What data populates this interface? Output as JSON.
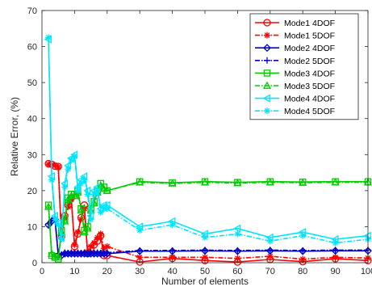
{
  "chart_data": {
    "type": "line",
    "xlabel": "Number of elements",
    "ylabel": "Relative Error, (%)",
    "xlim": [
      0,
      100
    ],
    "ylim": [
      0,
      70
    ],
    "xticks": [
      0,
      10,
      20,
      30,
      40,
      50,
      60,
      70,
      80,
      90,
      100
    ],
    "yticks": [
      0,
      10,
      20,
      30,
      40,
      50,
      60,
      70
    ],
    "legend_position": "top-right",
    "grid": false,
    "series": [
      {
        "name": "Mode1 4DOF",
        "color": "#ff0000",
        "dash": "solid",
        "marker": "circle",
        "x": [
          2,
          3,
          4,
          5,
          6,
          7,
          8,
          9,
          10,
          11,
          12,
          13,
          14,
          15,
          16,
          17,
          18,
          19,
          20,
          30,
          40,
          50,
          60,
          70,
          80,
          90,
          100
        ],
        "y": [
          27.5,
          27.3,
          26.8,
          26.7,
          7.2,
          13,
          16,
          18,
          4.5,
          8,
          12.5,
          16,
          2.5,
          4,
          5,
          6,
          7.5,
          2,
          2,
          0.2,
          1.2,
          0.6,
          0.2,
          0.9,
          0.3,
          1.1,
          0.6
        ]
      },
      {
        "name": "Mode1 5DOF",
        "color": "#ff0000",
        "dash": "dashdot",
        "marker": "asterisk",
        "x": [
          2,
          3,
          4,
          5,
          6,
          7,
          8,
          9,
          10,
          11,
          12,
          13,
          14,
          15,
          16,
          17,
          18,
          19,
          20,
          30,
          40,
          50,
          60,
          70,
          80,
          90,
          100
        ],
        "y": [
          27.3,
          27.2,
          27,
          26.5,
          7,
          12.5,
          15.5,
          17.5,
          5,
          8.5,
          12,
          15,
          3,
          4.5,
          5.5,
          7,
          8,
          4,
          4.5,
          1.5,
          1.5,
          1.5,
          1.2,
          1.8,
          1,
          1.5,
          1.3
        ]
      },
      {
        "name": "Mode2 4DOF",
        "color": "#0000cc",
        "dash": "solid",
        "marker": "diamond",
        "x": [
          2,
          3,
          4,
          5,
          6,
          7,
          8,
          9,
          10,
          11,
          12,
          13,
          14,
          15,
          16,
          17,
          18,
          19,
          20,
          30,
          40,
          50,
          60,
          70,
          80,
          90,
          100
        ],
        "y": [
          10.5,
          11.5,
          12,
          2,
          2,
          2.5,
          2.5,
          2.5,
          2.5,
          2.5,
          2.5,
          2.5,
          2.5,
          2.5,
          2.5,
          2.5,
          2.5,
          2.5,
          2.5,
          3.2,
          3.2,
          3.3,
          3.2,
          3.3,
          3.2,
          3.3,
          3.3
        ]
      },
      {
        "name": "Mode2 5DOF",
        "color": "#0000cc",
        "dash": "dashdot",
        "marker": "plus",
        "x": [
          2,
          3,
          4,
          5,
          6,
          7,
          8,
          9,
          10,
          11,
          12,
          13,
          14,
          15,
          16,
          17,
          18,
          19,
          20,
          30,
          40,
          50,
          60,
          70,
          80,
          90,
          100
        ],
        "y": [
          10.8,
          11.8,
          12.2,
          2.5,
          2.3,
          2.8,
          2.7,
          2.8,
          2.7,
          2.8,
          2.7,
          2.8,
          2.7,
          2.8,
          2.7,
          2.8,
          2.7,
          2.8,
          2.8,
          3.4,
          3.4,
          3.5,
          3.4,
          3.5,
          3.4,
          3.5,
          3.5
        ]
      },
      {
        "name": "Mode3 4DOF",
        "color": "#00cc00",
        "dash": "solid",
        "marker": "square",
        "x": [
          2,
          3,
          4,
          5,
          6,
          7,
          8,
          9,
          10,
          11,
          12,
          13,
          14,
          15,
          16,
          17,
          18,
          19,
          20,
          30,
          40,
          50,
          60,
          70,
          80,
          90,
          100
        ],
        "y": [
          16,
          2,
          1.5,
          1,
          9,
          12,
          18,
          19,
          19,
          20,
          15,
          9,
          10,
          15,
          17,
          20,
          22,
          21,
          20,
          22.5,
          22.2,
          22.5,
          22.3,
          22.5,
          22.4,
          22.5,
          22.5
        ]
      },
      {
        "name": "Mode3 5DOF",
        "color": "#00cc00",
        "dash": "dashdot",
        "marker": "triangle-up",
        "x": [
          2,
          3,
          4,
          5,
          6,
          7,
          8,
          9,
          10,
          11,
          12,
          13,
          14,
          15,
          16,
          17,
          18,
          19,
          20,
          30,
          40,
          50,
          60,
          70,
          80,
          90,
          100
        ],
        "y": [
          15.5,
          2.5,
          1.5,
          1.5,
          8.5,
          11.5,
          17.5,
          18.5,
          18.5,
          19.5,
          14.5,
          8.5,
          9.5,
          14.5,
          16.5,
          19.5,
          21.5,
          20.5,
          20,
          22.3,
          22,
          22.3,
          22.1,
          22.3,
          22.2,
          22.3,
          22.3
        ]
      },
      {
        "name": "Mode4 4DOF",
        "color": "#00e5ff",
        "dash": "solid",
        "marker": "triangle-left",
        "x": [
          2,
          3,
          4,
          5,
          6,
          7,
          8,
          9,
          10,
          11,
          12,
          13,
          14,
          15,
          16,
          17,
          18,
          19,
          20,
          30,
          40,
          50,
          60,
          70,
          80,
          90,
          100
        ],
        "y": [
          62,
          24,
          13,
          11,
          7,
          22,
          27,
          29,
          30,
          21,
          23,
          24,
          20,
          13,
          20,
          21,
          15,
          16,
          16,
          10,
          11.5,
          8,
          9.5,
          7,
          8.5,
          6.5,
          7.5
        ]
      },
      {
        "name": "Mode4 5DOF",
        "color": "#00e5ff",
        "dash": "dashdot",
        "marker": "asterisk",
        "x": [
          2,
          3,
          4,
          5,
          6,
          7,
          8,
          9,
          10,
          11,
          12,
          13,
          14,
          15,
          16,
          17,
          18,
          19,
          20,
          30,
          40,
          50,
          60,
          70,
          80,
          90,
          100
        ],
        "y": [
          62.5,
          23,
          12,
          10.5,
          6.5,
          21,
          26,
          28.5,
          29.5,
          20,
          22,
          23,
          19,
          12,
          19,
          20,
          14,
          15,
          15,
          9,
          10.5,
          7,
          8,
          6,
          7.5,
          5.5,
          6.5
        ]
      }
    ]
  }
}
